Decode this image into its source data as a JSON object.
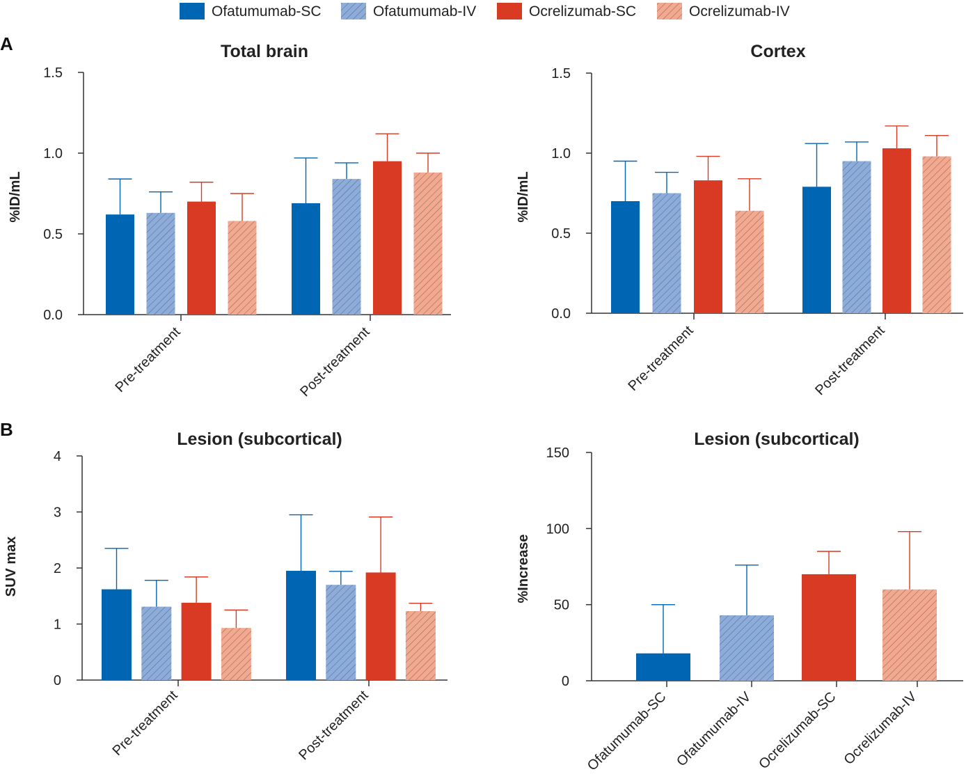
{
  "panel_labels": [
    "A",
    "B"
  ],
  "legend": [
    {
      "label": "Ofatumumab-SC",
      "color": "#0066b3",
      "hatch": false
    },
    {
      "label": "Ofatumumab-IV",
      "color": "#8caddb",
      "hatch": true
    },
    {
      "label": "Ocrelizumab-SC",
      "color": "#d93a23",
      "hatch": false
    },
    {
      "label": "Ocrelizumab-IV",
      "color": "#f2a98f",
      "hatch": true
    }
  ],
  "colors": {
    "err_blue": "#0066b3",
    "err_red": "#d93a23"
  },
  "chart_data": [
    {
      "type": "bar",
      "title": "Total brain",
      "ylabel": "%ID/mL",
      "xlabel": "",
      "ylim": [
        0,
        1.5
      ],
      "yticks": [
        "0.0",
        "0.5",
        "1.0",
        "1.5"
      ],
      "ytick_values": [
        0,
        0.5,
        1.0,
        1.5
      ],
      "categories": [
        "Pre-treatment",
        "Post-treatment"
      ],
      "series": [
        {
          "name": "Ofatumumab-SC",
          "values": [
            0.62,
            0.69
          ],
          "errors": [
            0.22,
            0.28
          ]
        },
        {
          "name": "Ofatumumab-IV",
          "values": [
            0.63,
            0.84
          ],
          "errors": [
            0.13,
            0.1
          ]
        },
        {
          "name": "Ocrelizumab-SC",
          "values": [
            0.7,
            0.95
          ],
          "errors": [
            0.12,
            0.17
          ]
        },
        {
          "name": "Ocrelizumab-IV",
          "values": [
            0.58,
            0.88
          ],
          "errors": [
            0.17,
            0.12
          ]
        }
      ]
    },
    {
      "type": "bar",
      "title": "Cortex",
      "ylabel": "%ID/mL",
      "xlabel": "",
      "ylim": [
        0,
        1.5
      ],
      "yticks": [
        "0.0",
        "0.5",
        "1.0",
        "1.5"
      ],
      "ytick_values": [
        0,
        0.5,
        1.0,
        1.5
      ],
      "categories": [
        "Pre-treatment",
        "Post-treatment"
      ],
      "series": [
        {
          "name": "Ofatumumab-SC",
          "values": [
            0.7,
            0.79
          ],
          "errors": [
            0.25,
            0.27
          ]
        },
        {
          "name": "Ofatumumab-IV",
          "values": [
            0.75,
            0.95
          ],
          "errors": [
            0.13,
            0.12
          ]
        },
        {
          "name": "Ocrelizumab-SC",
          "values": [
            0.83,
            1.03
          ],
          "errors": [
            0.15,
            0.14
          ]
        },
        {
          "name": "Ocrelizumab-IV",
          "values": [
            0.64,
            0.98
          ],
          "errors": [
            0.2,
            0.13
          ]
        }
      ]
    },
    {
      "type": "bar",
      "title": "Lesion (subcortical)",
      "ylabel": "SUV max",
      "xlabel": "",
      "ylim": [
        0,
        4
      ],
      "yticks": [
        "0",
        "1",
        "2",
        "3",
        "4"
      ],
      "ytick_values": [
        0,
        1,
        2,
        3,
        4
      ],
      "categories": [
        "Pre-treatment",
        "Post-treatment"
      ],
      "series": [
        {
          "name": "Ofatumumab-SC",
          "values": [
            1.62,
            1.95
          ],
          "errors": [
            0.73,
            1.0
          ]
        },
        {
          "name": "Ofatumumab-IV",
          "values": [
            1.31,
            1.7
          ],
          "errors": [
            0.47,
            0.24
          ]
        },
        {
          "name": "Ocrelizumab-SC",
          "values": [
            1.38,
            1.92
          ],
          "errors": [
            0.46,
            0.99
          ]
        },
        {
          "name": "Ocrelizumab-IV",
          "values": [
            0.93,
            1.23
          ],
          "errors": [
            0.32,
            0.14
          ]
        }
      ]
    },
    {
      "type": "bar",
      "title": "Lesion (subcortical)",
      "ylabel": "%Increase",
      "xlabel": "",
      "ylim": [
        0,
        150
      ],
      "yticks": [
        "0",
        "50",
        "100",
        "150"
      ],
      "ytick_values": [
        0,
        50,
        100,
        150
      ],
      "categories": [
        "Ofatumumab-SC",
        "Ofatumumab-IV",
        "Ocrelizumab-SC",
        "Ocrelizumab-IV"
      ],
      "series": [
        {
          "name": "%Increase",
          "values": [
            18,
            43,
            70,
            60
          ],
          "errors": [
            32,
            33,
            15,
            38
          ]
        }
      ]
    }
  ]
}
